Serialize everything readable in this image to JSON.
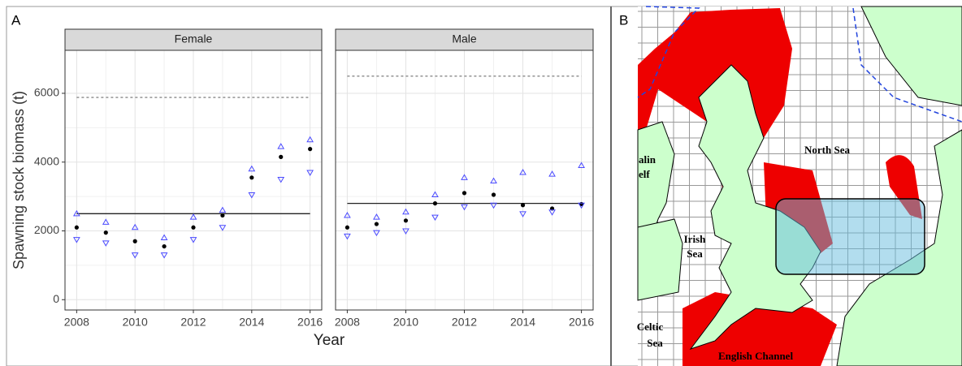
{
  "panel_a": {
    "label": "A",
    "y_label": "Spawning stock biomass (t)",
    "x_label": "Year"
  },
  "chart_data": [
    {
      "type": "scatter",
      "title": "Female",
      "x": [
        2008,
        2009,
        2010,
        2011,
        2012,
        2013,
        2014,
        2015,
        2016
      ],
      "xlim": [
        2007.6,
        2016.4
      ],
      "xticks": [
        2008,
        2010,
        2012,
        2014,
        2016
      ],
      "ylim": [
        -300,
        7250
      ],
      "yticks": [
        0,
        2000,
        4000,
        6000
      ],
      "grid": true,
      "series": [
        {
          "marker": "dot",
          "color": "#000000",
          "values": [
            2100,
            1950,
            1700,
            1550,
            2100,
            2450,
            3550,
            4150,
            4380
          ]
        },
        {
          "marker": "triangle-up",
          "color": "#4a4aff",
          "values": [
            2500,
            2250,
            2100,
            1800,
            2400,
            2600,
            3800,
            4450,
            4650
          ]
        },
        {
          "marker": "triangle-down",
          "color": "#4a4aff",
          "values": [
            1750,
            1650,
            1300,
            1300,
            1750,
            2100,
            3050,
            3500,
            3700
          ]
        }
      ],
      "hlines": [
        {
          "value": 2500,
          "style": "solid",
          "color": "#222222"
        },
        {
          "value": 5880,
          "style": "dashed",
          "color": "#888888"
        }
      ]
    },
    {
      "type": "scatter",
      "title": "Male",
      "x": [
        2008,
        2009,
        2010,
        2011,
        2012,
        2013,
        2014,
        2015,
        2016
      ],
      "xlim": [
        2007.6,
        2016.4
      ],
      "xticks": [
        2008,
        2010,
        2012,
        2014,
        2016
      ],
      "ylim": [
        -300,
        7250
      ],
      "yticks": [
        0,
        2000,
        4000,
        6000
      ],
      "grid": true,
      "series": [
        {
          "marker": "dot",
          "color": "#000000",
          "values": [
            2100,
            2200,
            2300,
            2800,
            3100,
            3050,
            2750,
            2650,
            2780
          ]
        },
        {
          "marker": "triangle-up",
          "color": "#4a4aff",
          "values": [
            2450,
            2400,
            2550,
            3050,
            3550,
            3450,
            3700,
            3650,
            3900
          ]
        },
        {
          "marker": "triangle-down",
          "color": "#4a4aff",
          "values": [
            1850,
            1950,
            2000,
            2400,
            2700,
            2750,
            2500,
            2550,
            2750
          ]
        }
      ],
      "hlines": [
        {
          "value": 2800,
          "style": "solid",
          "color": "#222222"
        },
        {
          "value": 6500,
          "style": "dashed",
          "color": "#888888"
        }
      ]
    }
  ],
  "map": {
    "label": "B",
    "north_sea": "North Sea",
    "irish": "Irish",
    "irish_sea": "Sea",
    "celtic": "Celtic",
    "celtic_sea": "Sea",
    "channel": "English Channel",
    "malin": "alin",
    "shelf": "elf"
  }
}
